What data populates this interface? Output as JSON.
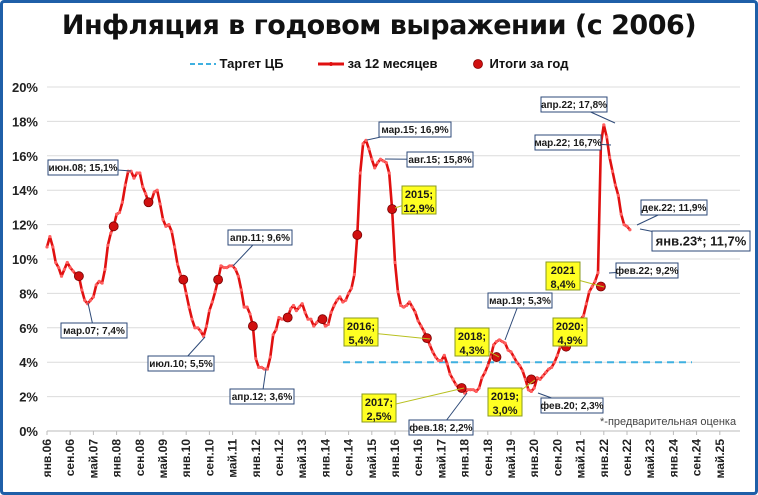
{
  "chart_data": {
    "type": "line",
    "title": "Инфляция в годовом выражении (с 2006)",
    "xlabel": "",
    "ylabel": "",
    "ylim": [
      0,
      20
    ],
    "yticks": [
      "0%",
      "2%",
      "4%",
      "6%",
      "8%",
      "10%",
      "12%",
      "14%",
      "16%",
      "18%",
      "20%"
    ],
    "xticks": [
      "янв.06",
      "сен.06",
      "май.07",
      "янв.08",
      "сен.08",
      "май.09",
      "янв.10",
      "сен.10",
      "май.11",
      "янв.12",
      "сен.12",
      "май.13",
      "янв.14",
      "сен.14",
      "май.15",
      "янв.16",
      "сен.16",
      "май.17",
      "янв.18",
      "сен.18",
      "май.19",
      "янв.20",
      "сен.20",
      "май.21",
      "янв.22",
      "сен.22",
      "май.23",
      "янв.24",
      "сен.24",
      "май.25"
    ],
    "grid": true,
    "legend_position": "top",
    "legend": [
      "Таргет ЦБ",
      "за 12 месяцев",
      "Итоги за год"
    ],
    "series": [
      {
        "name": "за 12 месяцев",
        "start": "янв.06",
        "values": [
          10.7,
          11.3,
          10.7,
          9.8,
          9.5,
          9.0,
          9.4,
          9.8,
          9.5,
          9.3,
          9.1,
          9.0,
          8.2,
          7.6,
          7.4,
          7.6,
          7.8,
          8.5,
          8.7,
          8.6,
          9.4,
          10.8,
          11.5,
          11.9,
          12.6,
          12.7,
          13.3,
          14.3,
          15.1,
          15.1,
          14.7,
          15.0,
          15.0,
          14.2,
          13.8,
          13.3,
          13.4,
          13.9,
          14.0,
          13.2,
          12.3,
          11.9,
          12.0,
          11.6,
          10.7,
          9.7,
          9.1,
          8.8,
          8.0,
          7.2,
          6.5,
          6.0,
          6.0,
          5.8,
          5.5,
          6.1,
          7.0,
          7.5,
          8.1,
          8.8,
          9.6,
          9.5,
          9.5,
          9.6,
          9.6,
          9.4,
          9.0,
          8.2,
          7.2,
          7.2,
          6.8,
          6.1,
          4.2,
          3.7,
          3.7,
          3.6,
          3.6,
          4.3,
          5.6,
          5.9,
          6.6,
          6.5,
          6.5,
          6.6,
          7.1,
          7.3,
          7.0,
          7.2,
          7.4,
          6.9,
          6.5,
          6.5,
          6.1,
          6.3,
          6.5,
          6.5,
          6.1,
          6.2,
          6.9,
          7.3,
          7.6,
          7.8,
          7.5,
          7.6,
          8.0,
          8.3,
          9.1,
          11.4,
          15.0,
          16.7,
          16.9,
          16.4,
          15.8,
          15.3,
          15.6,
          15.8,
          15.7,
          15.6,
          15.0,
          12.9,
          9.8,
          8.1,
          7.3,
          7.2,
          7.3,
          7.5,
          7.2,
          6.9,
          6.4,
          6.1,
          5.8,
          5.4,
          5.0,
          4.6,
          4.3,
          4.1,
          4.1,
          4.4,
          3.9,
          3.3,
          3.0,
          2.7,
          2.5,
          2.5,
          2.2,
          2.4,
          2.4,
          2.4,
          2.3,
          2.5,
          3.1,
          3.4,
          3.8,
          4.3,
          5.0,
          5.2,
          5.3,
          5.2,
          5.1,
          4.7,
          4.6,
          4.3,
          4.0,
          3.8,
          3.5,
          3.0,
          2.4,
          2.3,
          2.5,
          3.1,
          3.0,
          3.2,
          3.4,
          3.6,
          3.7,
          4.0,
          4.4,
          4.9,
          5.2,
          5.7,
          5.8,
          5.5,
          6.0,
          6.5,
          6.5,
          6.7,
          7.4,
          8.1,
          8.4,
          8.7,
          9.2,
          16.7,
          17.8,
          17.1,
          15.9,
          15.1,
          14.3,
          13.7,
          12.6,
          12.0,
          11.9,
          11.7
        ],
        "color": "#e01010"
      },
      {
        "name": "Итоги за год",
        "points": [
          {
            "x": "дек.06",
            "y": 9.0
          },
          {
            "x": "дек.07",
            "y": 11.9
          },
          {
            "x": "дек.08",
            "y": 13.3
          },
          {
            "x": "дек.09",
            "y": 8.8
          },
          {
            "x": "дек.10",
            "y": 8.8
          },
          {
            "x": "дек.11",
            "y": 6.1
          },
          {
            "x": "дек.12",
            "y": 6.6
          },
          {
            "x": "дек.13",
            "y": 6.5
          },
          {
            "x": "дек.14",
            "y": 11.4
          },
          {
            "x": "дек.15",
            "y": 12.9
          },
          {
            "x": "дек.16",
            "y": 5.4
          },
          {
            "x": "дек.17",
            "y": 2.5
          },
          {
            "x": "дек.18",
            "y": 4.3
          },
          {
            "x": "дек.19",
            "y": 3.0
          },
          {
            "x": "дек.20",
            "y": 4.9
          },
          {
            "x": "дек.21",
            "y": 8.4
          }
        ],
        "color": "#d01010"
      },
      {
        "name": "Таргет ЦБ",
        "values": [
          4.0
        ],
        "x_range": [
          "янв.15",
          "янв.24"
        ],
        "color": "#3fb0e0"
      }
    ],
    "annotations": [
      {
        "text": "июн.08; 15,1%",
        "style": "white"
      },
      {
        "text": "мар.07; 7,4%",
        "style": "white"
      },
      {
        "text": "июл.10; 5,5%",
        "style": "white"
      },
      {
        "text": "апр.11; 9,6%",
        "style": "white"
      },
      {
        "text": "апр.12; 3,6%",
        "style": "white"
      },
      {
        "text": "мар.15; 16,9%",
        "style": "white"
      },
      {
        "text": "авг.15; 15,8%",
        "style": "white"
      },
      {
        "text": "2015; 12,9%",
        "style": "yellow"
      },
      {
        "text": "2016; 5,4%",
        "style": "yellow"
      },
      {
        "text": "2017; 2,5%",
        "style": "yellow"
      },
      {
        "text": "фев.18; 2,2%",
        "style": "white"
      },
      {
        "text": "2018; 4,3%",
        "style": "yellow"
      },
      {
        "text": "мар.19; 5,3%",
        "style": "white"
      },
      {
        "text": "2019; 3,0%",
        "style": "yellow"
      },
      {
        "text": "фев.20; 2,3%",
        "style": "white"
      },
      {
        "text": "2020; 4,9%",
        "style": "yellow"
      },
      {
        "text": "2021 8,4%",
        "style": "yellow"
      },
      {
        "text": "фев.22; 9,2%",
        "style": "white"
      },
      {
        "text": "мар.22; 16,7%",
        "style": "white"
      },
      {
        "text": "апр.22; 17,8%",
        "style": "white"
      },
      {
        "text": "дек.22; 11,9%",
        "style": "white"
      },
      {
        "text": "янв.23*; 11,7%",
        "style": "white-large"
      }
    ],
    "footnote": "*-предварительная оценка"
  },
  "labels": {
    "title": "Инфляция в годовом выражении (с 2006)",
    "legend_target": "Таргет ЦБ",
    "legend_12m": "за 12 месяцев",
    "legend_year": "Итоги за год",
    "footnote": "*-предварительная оценка",
    "ann": {
      "jun08": "июн.08; 15,1%",
      "mar07": "мар.07; 7,4%",
      "jul10": "июл.10; 5,5%",
      "apr11": "апр.11; 9,6%",
      "apr12": "апр.12; 3,6%",
      "mar15": "мар.15; 16,9%",
      "aug15": "авг.15; 15,8%",
      "y2015a": "2015;",
      "y2015b": "12,9%",
      "y2016a": "2016;",
      "y2016b": "5,4%",
      "y2017a": "2017;",
      "y2017b": "2,5%",
      "feb18": "фев.18; 2,2%",
      "y2018a": "2018;",
      "y2018b": "4,3%",
      "mar19": "мар.19; 5,3%",
      "y2019a": "2019;",
      "y2019b": "3,0%",
      "feb20": "фев.20; 2,3%",
      "y2020a": "2020;",
      "y2020b": "4,9%",
      "y2021a": "2021",
      "y2021b": "8,4%",
      "feb22": "фев.22; 9,2%",
      "mar22": "мар.22; 16,7%",
      "apr22": "апр.22; 17,8%",
      "dec22": "дек.22; 11,9%",
      "jan23": "янв.23*; 11,7%"
    }
  }
}
